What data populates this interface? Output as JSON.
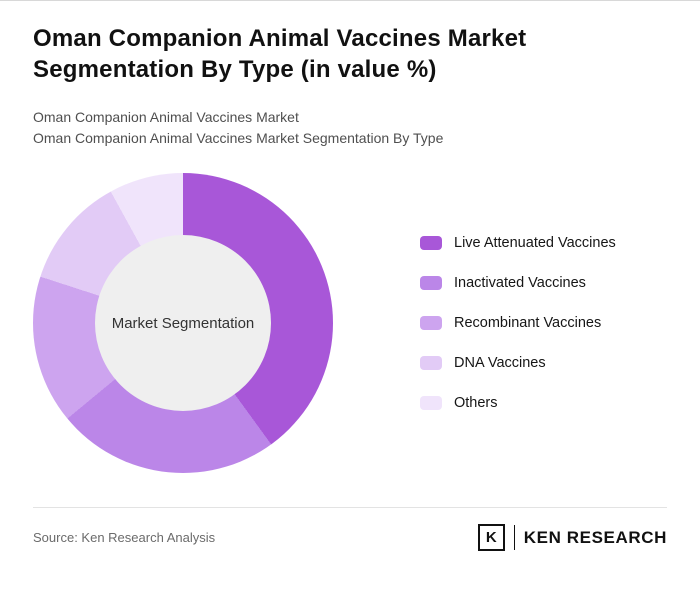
{
  "page": {
    "title": "Oman Companion Animal Vaccines Market Segmentation By Type (in value %)",
    "subtitle_line1": "Oman Companion Animal Vaccines Market",
    "subtitle_line2": "Oman Companion Animal Vaccines Market Segmentation By Type",
    "source": "Source: Ken Research Analysis",
    "logo_letter": "K",
    "logo_text": "KEN RESEARCH"
  },
  "chart_data": {
    "type": "pie",
    "donut": true,
    "title": "Oman Companion Animal Vaccines Market Segmentation By Type (in value %)",
    "center_label": "Market Segmentation",
    "categories": [
      "Live Attenuated Vaccines",
      "Inactivated Vaccines",
      "Recombinant Vaccines",
      "DNA Vaccines",
      "Others"
    ],
    "values": [
      40,
      24,
      16,
      12,
      8
    ],
    "colors": [
      "#a857d8",
      "#bb86e8",
      "#cda4ef",
      "#e2cbf6",
      "#f0e4fb"
    ],
    "start_angle_deg": 0,
    "direction": "clockwise",
    "legend_position": "right",
    "hole_color": "#efefef"
  }
}
